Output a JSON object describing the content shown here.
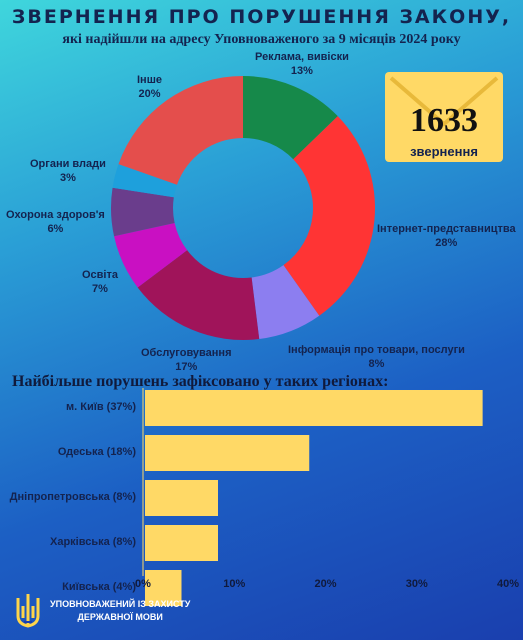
{
  "header": {
    "title": "ЗВЕРНЕННЯ ПРО ПОРУШЕННЯ ЗАКОНУ,",
    "subtitle": "які надійшли на адресу Уповноваженого за 9 місяців 2024 року"
  },
  "envelope": {
    "count": "1633",
    "label": "звернення"
  },
  "chart_data": [
    {
      "type": "pie",
      "donut": true,
      "slices": [
        {
          "label": "Реклама, вивіски",
          "percent_label": "13%",
          "value": 13,
          "color": "#16894a"
        },
        {
          "label": "Інтернет-представництва",
          "percent_label": "28%",
          "value": 28,
          "color": "#ff3434"
        },
        {
          "label": "Інформація про товари, послуги",
          "percent_label": "8%",
          "value": 8,
          "color": "#8c7ef0"
        },
        {
          "label": "Обслуговування",
          "percent_label": "17%",
          "value": 17,
          "color": "#a0145a"
        },
        {
          "label": "Освіта",
          "percent_label": "7%",
          "value": 7,
          "color": "#c910c2"
        },
        {
          "label": "Охорона здоров'я",
          "percent_label": "6%",
          "value": 6,
          "color": "#6a3d8c"
        },
        {
          "label": "Органи влади",
          "percent_label": "3%",
          "value": 3,
          "color": "#1ea0dc"
        },
        {
          "label": "Інше",
          "percent_label": "20%",
          "value": 20,
          "color": "#e44e4c"
        }
      ]
    },
    {
      "type": "bar",
      "orientation": "horizontal",
      "title": "Найбільше порушень зафіксовано у таких регіонах:",
      "categories": [
        "м. Київ (37%)",
        "Одеська (18%)",
        "Дніпропетровська (8%)",
        "Харківська (8%)",
        "Київська (4%)"
      ],
      "values": [
        37,
        18,
        8,
        8,
        4
      ],
      "xlim": [
        0,
        40
      ],
      "xticks": [
        "0%",
        "10%",
        "20%",
        "30%",
        "40%"
      ],
      "bar_color": "#ffd966"
    }
  ],
  "footer": {
    "line1": "УПОВНОВАЖЕНИЙ ІЗ ЗАХИСТУ",
    "line2": "ДЕРЖАВНОЇ МОВИ",
    "logo_icon": "trident-icon"
  }
}
